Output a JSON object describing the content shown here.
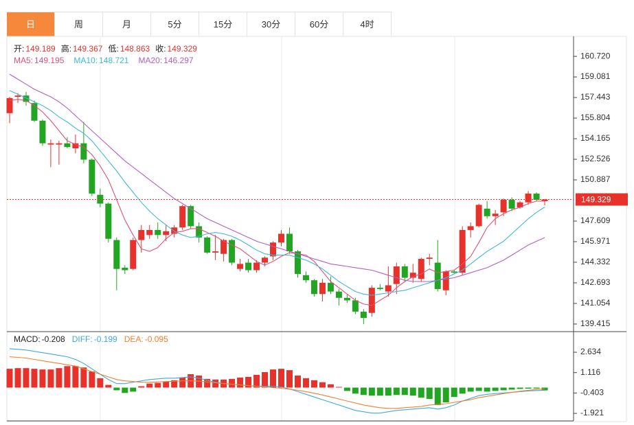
{
  "tabs": {
    "items": [
      "日",
      "周",
      "月",
      "5分",
      "15分",
      "30分",
      "60分",
      "4时"
    ],
    "active": 0
  },
  "chart_data": [
    {
      "type": "candlestick",
      "header_labels": {
        "open": "开:",
        "high": "高:",
        "low": "低:",
        "close": "收:"
      },
      "up_color": "#e8312a",
      "down_color": "#22a522",
      "candles": {
        "open": [
          156.2,
          157.5,
          157.6,
          157.0,
          155.6,
          153.7,
          153.7,
          153.8,
          153.4,
          153.8,
          152.5,
          149.7,
          149.0,
          146.1,
          143.9,
          143.8,
          146.1,
          146.5,
          146.9,
          146.5,
          146.6,
          147.1,
          148.8,
          147.2,
          146.3,
          145.1,
          145.0,
          146.1,
          143.8,
          144.3,
          143.7,
          144.3,
          144.8,
          145.9,
          146.6,
          145.2,
          143.3,
          142.9,
          141.8,
          142.7,
          142.0,
          141.5,
          141.3,
          140.4,
          140.3,
          142.3,
          142.0,
          142.6,
          144.0,
          143.1,
          143.0,
          144.6,
          144.3,
          142.1,
          143.6,
          143.5,
          146.9,
          147.2,
          148.6,
          148.0,
          148.3,
          149.3,
          148.7,
          149.1,
          149.8,
          149.189
        ],
        "high": [
          157.5,
          157.8,
          157.9,
          157.2,
          155.7,
          154.1,
          154.0,
          154.3,
          154.5,
          155.5,
          152.6,
          150.2,
          149.1,
          146.3,
          144.1,
          146.3,
          147.3,
          147.3,
          147.5,
          147.3,
          147.3,
          148.9,
          148.9,
          147.5,
          146.4,
          146.5,
          146.2,
          146.2,
          144.6,
          144.6,
          144.5,
          144.8,
          146.0,
          146.9,
          147.1,
          145.3,
          143.6,
          143.0,
          143.0,
          143.2,
          142.2,
          141.8,
          141.5,
          140.6,
          142.5,
          142.6,
          144.0,
          144.3,
          144.2,
          144.2,
          144.7,
          145.0,
          146.1,
          143.7,
          143.7,
          147.2,
          147.5,
          149.0,
          149.2,
          148.5,
          149.4,
          149.5,
          149.2,
          150.0,
          149.9,
          149.367
        ],
        "low": [
          155.4,
          157.0,
          156.8,
          155.5,
          153.6,
          151.9,
          152.1,
          153.4,
          153.0,
          152.2,
          149.6,
          148.7,
          145.9,
          142.1,
          143.4,
          143.7,
          145.1,
          146.2,
          146.2,
          146.0,
          146.3,
          146.9,
          147.0,
          145.9,
          145.0,
          144.5,
          144.4,
          144.1,
          143.6,
          143.5,
          143.5,
          144.0,
          144.5,
          145.6,
          145.0,
          143.1,
          142.7,
          141.6,
          141.2,
          141.8,
          140.9,
          141.1,
          140.2,
          139.4,
          140.0,
          142.1,
          141.6,
          141.8,
          142.8,
          142.7,
          142.8,
          144.1,
          142.0,
          141.7,
          143.4,
          143.3,
          146.3,
          147.1,
          147.8,
          147.3,
          148.0,
          148.4,
          148.6,
          148.9,
          149.2,
          148.863
        ],
        "close": [
          157.4,
          157.6,
          157.1,
          155.6,
          153.8,
          153.8,
          153.8,
          153.5,
          153.8,
          152.5,
          149.8,
          149.0,
          146.2,
          143.8,
          143.7,
          146.1,
          146.9,
          146.9,
          146.5,
          146.8,
          147.1,
          148.8,
          147.2,
          146.3,
          145.1,
          145.2,
          146.1,
          144.3,
          144.2,
          143.7,
          144.3,
          144.7,
          145.9,
          146.6,
          145.2,
          143.4,
          142.9,
          141.8,
          142.7,
          142.0,
          141.5,
          141.3,
          140.4,
          139.9,
          142.3,
          142.2,
          142.5,
          144.0,
          143.1,
          143.5,
          144.6,
          144.7,
          142.2,
          143.6,
          143.5,
          146.9,
          147.2,
          148.9,
          148.0,
          148.2,
          149.3,
          148.6,
          149.1,
          149.8,
          149.3,
          149.329
        ]
      },
      "series": [
        {
          "name": "MA5",
          "label": "MA5:",
          "color": "#e0507a",
          "values": [
            157.2,
            157.3,
            157.2,
            156.8,
            156.3,
            155.6,
            154.8,
            154.0,
            153.7,
            153.5,
            152.9,
            152.0,
            150.9,
            149.3,
            147.7,
            146.5,
            145.4,
            145.2,
            145.5,
            146.2,
            146.7,
            146.8,
            147.0,
            147.0,
            146.7,
            146.4,
            146.0,
            145.7,
            145.4,
            144.9,
            144.4,
            144.1,
            144.4,
            144.8,
            145.1,
            145.0,
            144.9,
            144.4,
            143.6,
            142.8,
            142.3,
            141.8,
            141.3,
            141.0,
            140.9,
            141.3,
            141.7,
            142.3,
            142.8,
            143.2,
            143.4,
            143.8,
            143.5,
            143.6,
            143.7,
            144.2,
            144.8,
            145.9,
            147.1,
            147.8,
            148.2,
            148.5,
            148.7,
            149.0,
            149.2,
            149.195
          ]
        },
        {
          "name": "MA10",
          "label": "MA10:",
          "color": "#3fb7dc",
          "values": [
            158.0,
            157.7,
            157.4,
            157.1,
            156.8,
            156.4,
            155.9,
            155.5,
            155.0,
            154.6,
            154.0,
            153.2,
            152.4,
            151.6,
            150.7,
            149.9,
            149.1,
            148.4,
            147.8,
            147.3,
            146.8,
            146.5,
            146.3,
            146.4,
            146.6,
            146.7,
            146.6,
            146.4,
            146.1,
            145.7,
            145.3,
            145.0,
            144.9,
            144.9,
            144.9,
            144.7,
            144.5,
            144.2,
            143.8,
            143.3,
            142.8,
            142.4,
            142.0,
            141.8,
            141.7,
            141.8,
            141.9,
            142.0,
            142.1,
            142.3,
            142.5,
            142.7,
            142.9,
            143.1,
            143.4,
            143.7,
            144.2,
            144.7,
            145.2,
            145.6,
            146.0,
            146.6,
            147.2,
            147.8,
            148.3,
            148.721
          ]
        },
        {
          "name": "MA20",
          "label": "MA20:",
          "color": "#b15fc4",
          "values": [
            159.3,
            158.9,
            158.5,
            158.1,
            157.8,
            157.5,
            157.1,
            156.6,
            156.0,
            155.4,
            154.8,
            154.2,
            153.6,
            153.0,
            152.4,
            151.9,
            151.4,
            150.9,
            150.4,
            149.9,
            149.4,
            149.0,
            148.6,
            148.2,
            147.8,
            147.5,
            147.2,
            146.9,
            146.6,
            146.3,
            146.0,
            145.8,
            145.6,
            145.4,
            145.2,
            145.0,
            144.8,
            144.6,
            144.4,
            144.2,
            144.1,
            144.0,
            143.9,
            143.8,
            143.7,
            143.5,
            143.3,
            143.1,
            142.9,
            142.8,
            142.8,
            142.8,
            142.9,
            143.0,
            143.1,
            143.3,
            143.5,
            143.7,
            143.9,
            144.2,
            144.5,
            144.9,
            145.3,
            145.7,
            146.0,
            146.297
          ]
        }
      ],
      "ylim": [
        138.81,
        162.2
      ],
      "yticks": [
        {
          "value": 160.72,
          "label": "160.720"
        },
        159.081,
        157.443,
        155.804,
        154.165,
        152.526,
        150.887,
        147.609,
        145.971,
        144.332,
        142.693,
        141.054,
        139.415
      ],
      "current_price_line": true
    },
    {
      "type": "macd",
      "series": [
        {
          "name": "MACD",
          "label": "MACD:",
          "color": "#222222",
          "up_color": "#e8312a",
          "down_color": "#22a522",
          "values": [
            1.4,
            1.45,
            1.45,
            1.4,
            1.35,
            1.35,
            1.45,
            1.6,
            1.6,
            1.5,
            1.2,
            0.7,
            0.2,
            -0.2,
            -0.4,
            -0.3,
            0.1,
            0.3,
            0.35,
            0.45,
            0.55,
            0.75,
            1.0,
            0.9,
            0.65,
            0.6,
            0.6,
            0.65,
            0.75,
            0.8,
            0.95,
            1.15,
            1.35,
            1.4,
            1.3,
            0.9,
            0.7,
            0.55,
            0.4,
            0.25,
            0.05,
            -0.25,
            -0.45,
            -0.55,
            -0.6,
            -0.6,
            -0.6,
            -0.55,
            -0.55,
            -0.6,
            -0.75,
            -0.85,
            -1.3,
            -1.1,
            -0.7,
            -0.45,
            -0.3,
            -0.25,
            -0.3,
            -0.25,
            -0.2,
            -0.15,
            -0.1,
            -0.08,
            -0.07,
            -0.208
          ]
        },
        {
          "name": "DIFF",
          "label": "DIFF:",
          "color": "#3fa9dc",
          "values": [
            2.9,
            2.85,
            2.8,
            2.7,
            2.6,
            2.5,
            2.4,
            2.3,
            2.1,
            1.8,
            1.4,
            1.0,
            0.6,
            0.3,
            0.3,
            0.4,
            0.5,
            0.6,
            0.65,
            0.7,
            0.7,
            0.75,
            0.8,
            0.7,
            0.55,
            0.4,
            0.3,
            0.25,
            0.2,
            0.15,
            0.1,
            0.1,
            0.1,
            0.05,
            -0.1,
            -0.3,
            -0.5,
            -0.7,
            -0.9,
            -1.1,
            -1.3,
            -1.5,
            -1.7,
            -1.8,
            -1.9,
            -1.9,
            -1.8,
            -1.7,
            -1.65,
            -1.6,
            -1.55,
            -1.5,
            -1.6,
            -1.5,
            -1.3,
            -1.0,
            -0.8,
            -0.6,
            -0.5,
            -0.45,
            -0.4,
            -0.35,
            -0.3,
            -0.25,
            -0.22,
            -0.199
          ]
        },
        {
          "name": "DEA",
          "label": "DEA:",
          "color": "#f08030",
          "values": [
            2.3,
            2.25,
            2.2,
            2.1,
            2.0,
            1.9,
            1.8,
            1.7,
            1.6,
            1.4,
            1.2,
            1.0,
            0.8,
            0.6,
            0.5,
            0.45,
            0.4,
            0.4,
            0.42,
            0.45,
            0.47,
            0.5,
            0.5,
            0.48,
            0.42,
            0.36,
            0.3,
            0.25,
            0.2,
            0.15,
            0.1,
            0.05,
            0.0,
            -0.05,
            -0.12,
            -0.2,
            -0.3,
            -0.42,
            -0.55,
            -0.7,
            -0.85,
            -1.0,
            -1.15,
            -1.3,
            -1.4,
            -1.5,
            -1.55,
            -1.55,
            -1.5,
            -1.45,
            -1.4,
            -1.3,
            -1.25,
            -1.2,
            -1.1,
            -1.0,
            -0.9,
            -0.75,
            -0.65,
            -0.55,
            -0.45,
            -0.35,
            -0.27,
            -0.2,
            -0.14,
            -0.095
          ]
        }
      ],
      "ylim": [
        -2.48,
        4.17
      ],
      "yticks": [
        2.634,
        1.116,
        -0.403,
        -1.921
      ]
    }
  ]
}
